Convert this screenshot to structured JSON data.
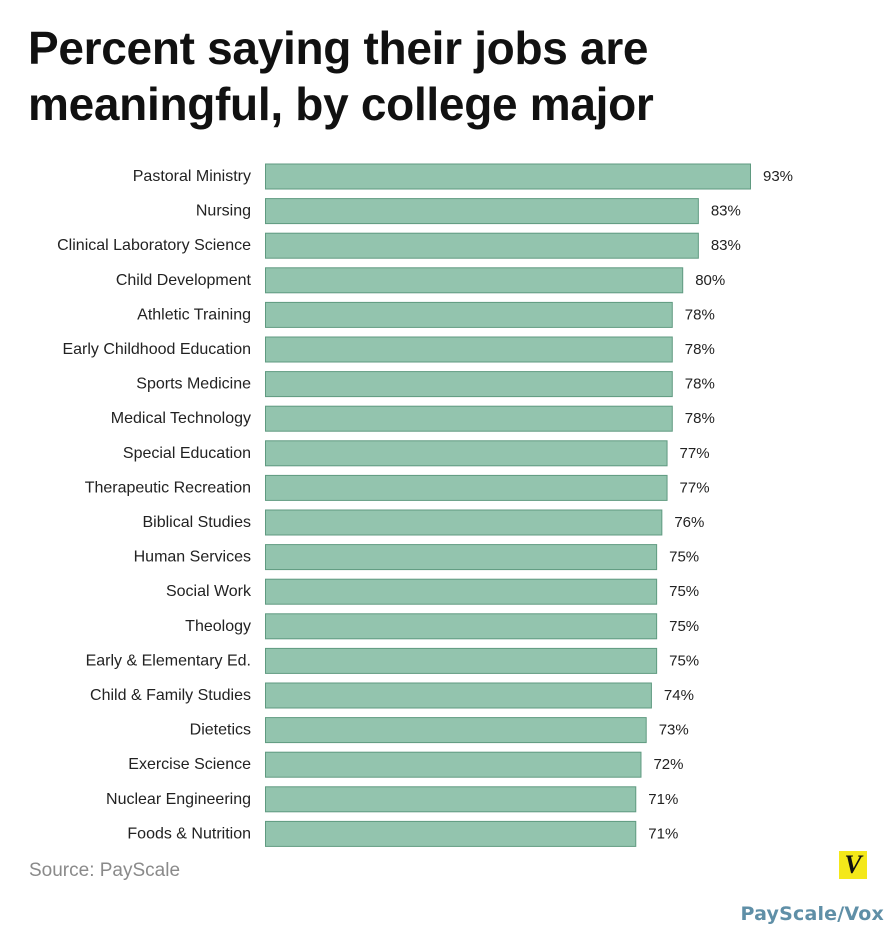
{
  "header": {
    "title_line1": "Percent saying their jobs are",
    "title_line2": "meaningful, by college major"
  },
  "footer": {
    "source": "Source: PayScale",
    "logo_letter": "V",
    "credit": "PayScale/Vox"
  },
  "colors": {
    "bar_fill": "#93c4ae",
    "bar_stroke": "#5f9a80",
    "label_text": "#222222",
    "logo_bg": "#f4e81a",
    "credit_text": "#5f8fa7"
  },
  "chart_data": {
    "type": "bar",
    "orientation": "horizontal",
    "title": "Percent saying their jobs are meaningful, by college major",
    "xlabel": "",
    "ylabel": "",
    "unit": "%",
    "xlim": [
      0,
      93
    ],
    "grid": false,
    "legend": "none",
    "categories": [
      "Pastoral Ministry",
      "Nursing",
      "Clinical Laboratory Science",
      "Child Development",
      "Athletic Training",
      "Early Childhood Education",
      "Sports Medicine",
      "Medical Technology",
      "Special Education",
      "Therapeutic Recreation",
      "Biblical Studies",
      "Human Services",
      "Social Work",
      "Theology",
      "Early & Elementary Ed.",
      "Child & Family Studies",
      "Dietetics",
      "Exercise Science",
      "Nuclear Engineering",
      "Foods & Nutrition"
    ],
    "values": [
      93,
      83,
      83,
      80,
      78,
      78,
      78,
      78,
      77,
      77,
      76,
      75,
      75,
      75,
      75,
      74,
      73,
      72,
      71,
      71
    ],
    "data_labels": [
      "93%",
      "83%",
      "83%",
      "80%",
      "78%",
      "78%",
      "78%",
      "78%",
      "77%",
      "77%",
      "76%",
      "75%",
      "75%",
      "75%",
      "75%",
      "74%",
      "73%",
      "72%",
      "71%",
      "71%"
    ]
  }
}
